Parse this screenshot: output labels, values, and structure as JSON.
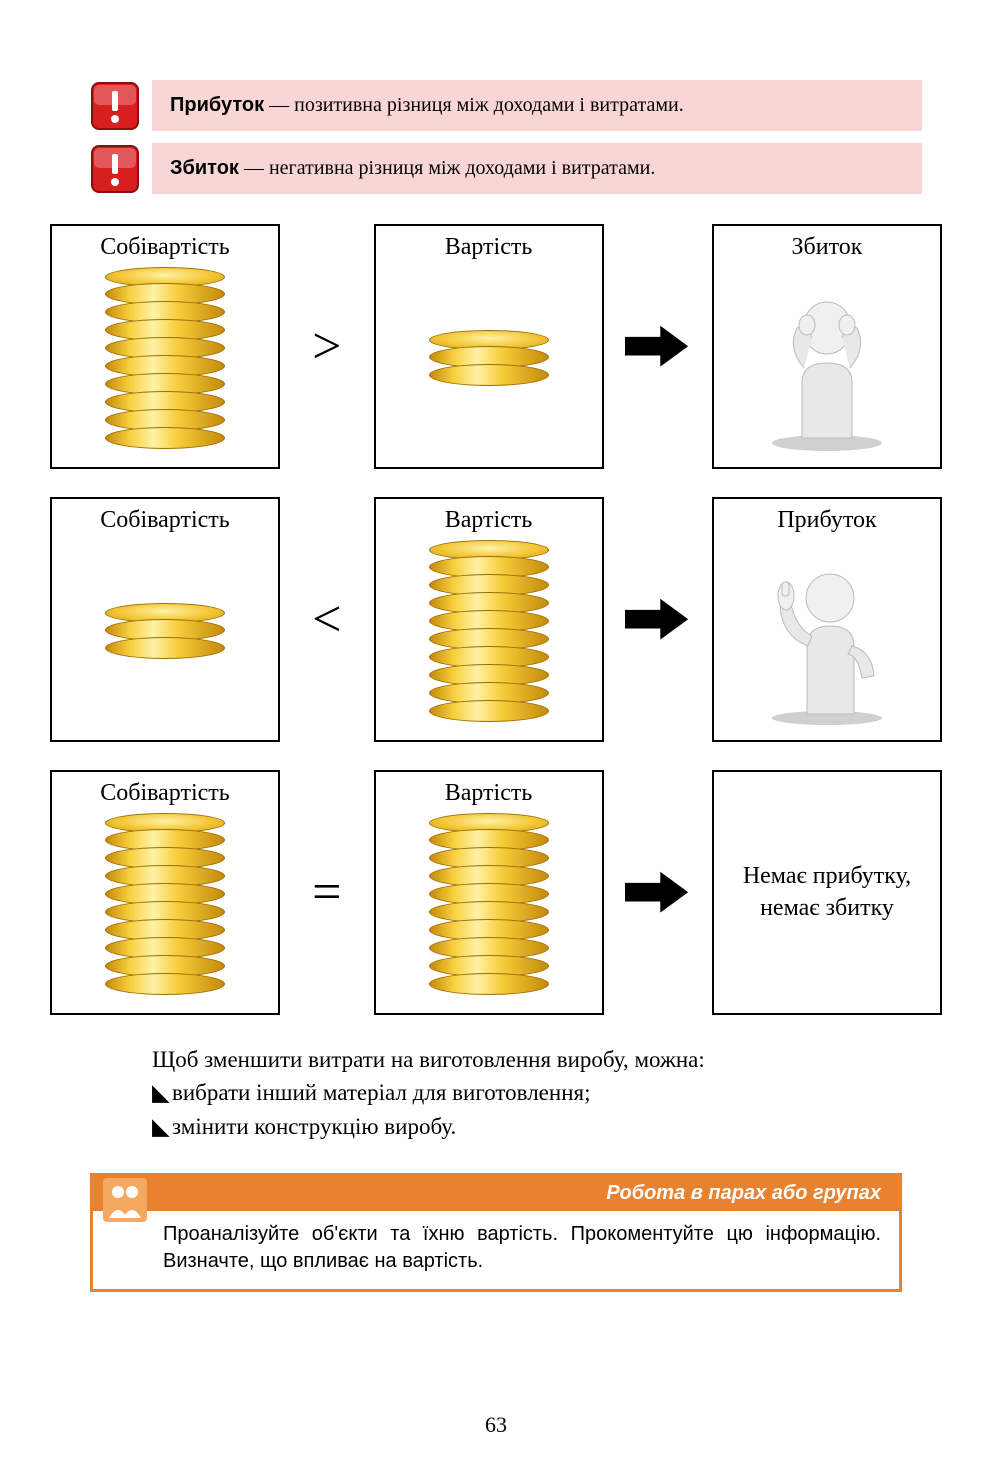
{
  "definitions": [
    {
      "term": "Прибуток",
      "text": " — позитивна різниця між доходами і витратами."
    },
    {
      "term": "Збиток",
      "text": " — негативна різниця між доходами і витратами."
    }
  ],
  "diagram": {
    "labels": {
      "cost": "Собівартість",
      "value": "Вартість",
      "loss": "Збиток",
      "profit": "Прибуток",
      "none": "Немає прибутку, немає збитку"
    },
    "operators": {
      "gt": ">",
      "lt": "<",
      "eq": "="
    },
    "rows": [
      {
        "left_coins": 9,
        "op_key": "gt",
        "right_coins": 2,
        "result_key": "loss",
        "result_type": "figure_sad"
      },
      {
        "left_coins": 2,
        "op_key": "lt",
        "right_coins": 9,
        "result_key": "profit",
        "result_type": "figure_thumbs"
      },
      {
        "left_coins": 9,
        "op_key": "eq",
        "right_coins": 9,
        "result_key": "none",
        "result_type": "text"
      }
    ],
    "coin_style": {
      "side_fill": "linear-gradient(90deg,#c48a0a 0%,#f7cf3c 20%,#fff1a8 40%,#f7cf3c 60%,#c48a0a 100%)",
      "side_border": "#9c6e06",
      "top_fill": "radial-gradient(ellipse at 50% 40%,#fff2a6 0%,#f3c737 55%,#d39f12 100%)",
      "top_border": "#9c6e06"
    },
    "arrow_color": "#000000"
  },
  "body": {
    "intro": "Щоб зменшити витрати на виготовлення виробу, можна:",
    "bullets": [
      "вибрати інший матеріал для виготовлення;",
      "змінити конструкцію виробу."
    ],
    "bullet_marker": "◣"
  },
  "section": {
    "title": "Робота в парах або групах",
    "body": "Проаналізуйте об'єкти та їхню вартість. Прокоментуйте цю інформацію. Визначте, що впливає на вартість.",
    "accent": "#e8822f"
  },
  "alert_icon": {
    "bg": "#d81f1f",
    "border": "#8a0e0e",
    "mark": "#ffffff"
  },
  "page_number": "63"
}
